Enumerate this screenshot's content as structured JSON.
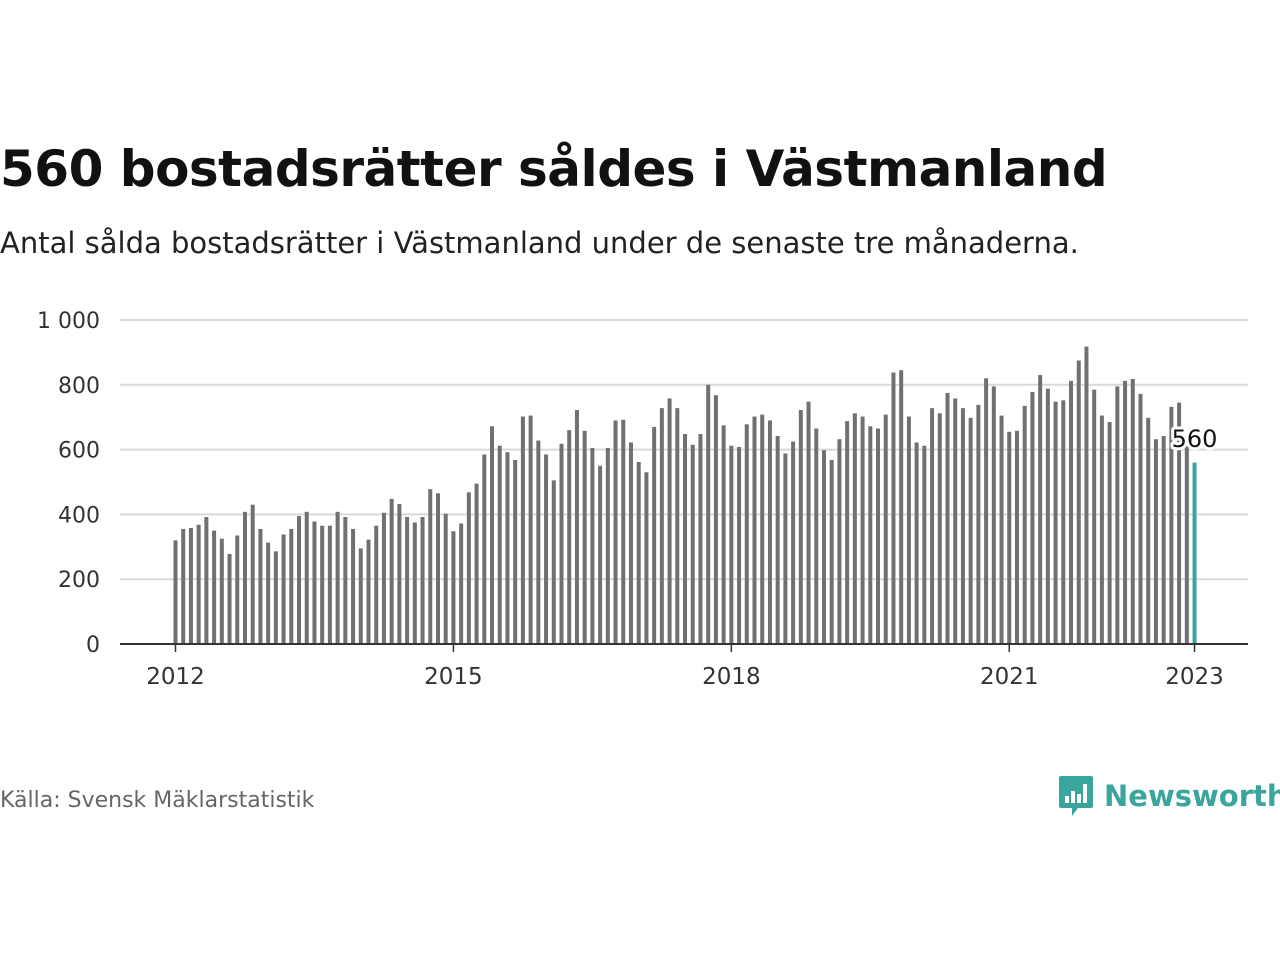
{
  "title": "560 bostadsrätter såldes i Västmanland",
  "subtitle": "Antal sålda bostadsrätter i Västmanland under de senaste tre månaderna.",
  "source": "Källa: Svensk Mäklarstatistik",
  "brand": {
    "name": "Newsworthy",
    "logo_icon": "bar-chart-speech-bubble-icon"
  },
  "colors": {
    "bar": "#707070",
    "highlight": "#3aa59c",
    "grid": "#d9d9d9",
    "axis": "#333333"
  },
  "chart_data": {
    "type": "bar",
    "title": "560 bostadsrätter såldes i Västmanland",
    "ylim": [
      0,
      1000
    ],
    "yticks": [
      0,
      200,
      400,
      600,
      800,
      1000
    ],
    "ytick_labels": [
      "0",
      "200",
      "400",
      "600",
      "800",
      "1 000"
    ],
    "xtick_labels": [
      {
        "label": "2012",
        "month": 0
      },
      {
        "label": "2015",
        "month": 36
      },
      {
        "label": "2018",
        "month": 72
      },
      {
        "label": "2021",
        "month": 108
      },
      {
        "label": "2023",
        "month": 132
      }
    ],
    "x_start": "2012-01",
    "x_end": "2023-01",
    "values": [
      320,
      355,
      358,
      368,
      392,
      350,
      325,
      278,
      335,
      408,
      430,
      355,
      313,
      286,
      338,
      355,
      395,
      408,
      378,
      365,
      365,
      408,
      392,
      355,
      295,
      322,
      365,
      405,
      448,
      432,
      392,
      375,
      392,
      478,
      465,
      402,
      348,
      372,
      468,
      495,
      585,
      672,
      612,
      592,
      568,
      702,
      705,
      628,
      585,
      505,
      618,
      660,
      722,
      658,
      605,
      550,
      605,
      690,
      692,
      622,
      562,
      530,
      670,
      728,
      758,
      728,
      648,
      615,
      648,
      800,
      768,
      675,
      612,
      608,
      678,
      702,
      708,
      690,
      642,
      588,
      625,
      722,
      748,
      665,
      598,
      568,
      632,
      688,
      712,
      702,
      672,
      665,
      708,
      838,
      845,
      702,
      622,
      612,
      728,
      712,
      775,
      758,
      728,
      698,
      738,
      820,
      795,
      705,
      655,
      658,
      735,
      778,
      830,
      788,
      748,
      752,
      812,
      875,
      918,
      785,
      705,
      685,
      795,
      812,
      818,
      772,
      698,
      632,
      642,
      732,
      745,
      612,
      560
    ],
    "highlight": {
      "index": 132,
      "value": 560,
      "label": "560"
    }
  }
}
